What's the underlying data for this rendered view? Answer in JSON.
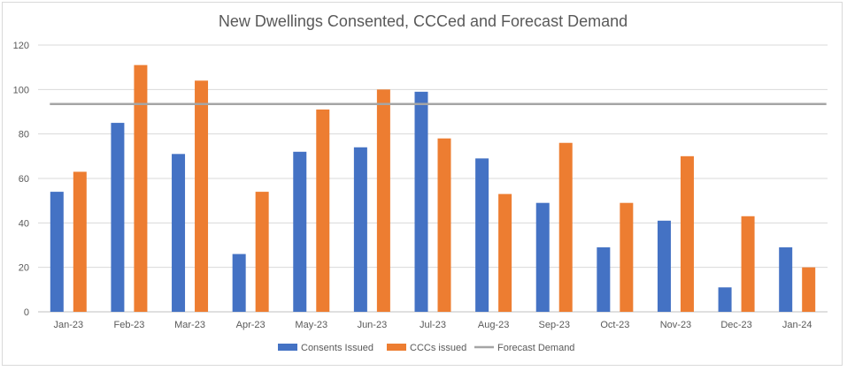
{
  "chart_data": {
    "type": "bar",
    "title": "New Dwellings Consented, CCCed and Forecast Demand",
    "xlabel": "",
    "ylabel": "",
    "ylim": [
      0,
      120
    ],
    "yticks": [
      0,
      20,
      40,
      60,
      80,
      100,
      120
    ],
    "grid": true,
    "legend_position": "bottom",
    "categories": [
      "Jan-23",
      "Feb-23",
      "Mar-23",
      "Apr-23",
      "May-23",
      "Jun-23",
      "Jul-23",
      "Aug-23",
      "Sep-23",
      "Oct-23",
      "Nov-23",
      "Dec-23",
      "Jan-24"
    ],
    "series": [
      {
        "name": "Consents Issued",
        "type": "bar",
        "color": "#4472c4",
        "values": [
          54,
          85,
          71,
          26,
          72,
          74,
          99,
          69,
          49,
          29,
          41,
          11,
          29
        ]
      },
      {
        "name": "CCCs issued",
        "type": "bar",
        "color": "#ed7d31",
        "values": [
          63,
          111,
          104,
          54,
          91,
          100,
          78,
          53,
          76,
          49,
          70,
          43,
          20
        ]
      },
      {
        "name": "Forecast Demand",
        "type": "line",
        "color": "#a5a5a5",
        "values": [
          93.5,
          93.5,
          93.5,
          93.5,
          93.5,
          93.5,
          93.5,
          93.5,
          93.5,
          93.5,
          93.5,
          93.5,
          93.5
        ]
      }
    ]
  }
}
